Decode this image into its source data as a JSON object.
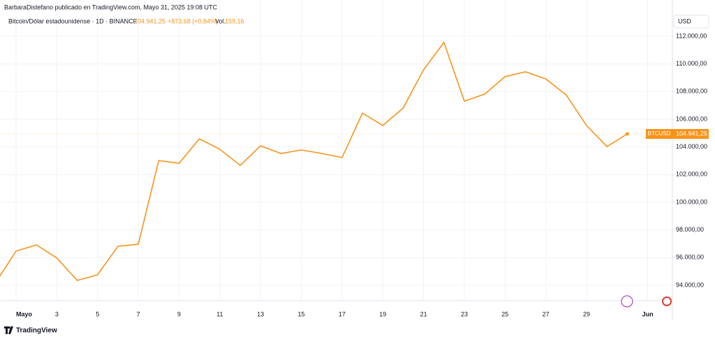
{
  "header": {
    "attribution": "BarbaraDistefano publicado en TradingView.com, Mayo 31, 2025 19:08 UTC",
    "symbol": "Bitcoin/Dólar estadounidense · 1D · BINANCE",
    "change": "+873,68 (+0,84%)",
    "volume_label": "Vol.",
    "volume": "159,16",
    "currency": "USD",
    "ticker": "BTCUSD",
    "brand": "TradingView"
  },
  "chart_data": {
    "type": "line",
    "categories": [
      null,
      "Mayo",
      null,
      "3",
      null,
      "5",
      null,
      "7",
      null,
      "9",
      null,
      "11",
      null,
      "13",
      null,
      "15",
      null,
      "17",
      null,
      "19",
      null,
      "21",
      null,
      "23",
      null,
      "25",
      null,
      "27",
      null,
      "29",
      null,
      null,
      "Jun"
    ],
    "series": [
      {
        "name": "BTCUSD",
        "color": "#f7931a",
        "values": [
          94200,
          96470,
          96920,
          95970,
          94350,
          94760,
          96820,
          96970,
          103020,
          102820,
          104590,
          103830,
          102670,
          104080,
          103530,
          103780,
          103530,
          103230,
          106450,
          105550,
          106810,
          109580,
          111550,
          107310,
          107820,
          109080,
          109430,
          108920,
          107760,
          105550,
          104030,
          104941.25,
          null
        ],
        "value_labels": [
          null,
          null,
          null,
          null,
          null,
          null,
          null,
          null,
          null,
          null,
          null,
          null,
          null,
          null,
          null,
          null,
          null,
          null,
          null,
          null,
          null,
          null,
          null,
          null,
          null,
          null,
          null,
          null,
          null,
          null,
          null,
          "104.941,25",
          null
        ]
      }
    ],
    "ylim": [
      92890,
      114220
    ],
    "yticks": [
      {
        "value": 94000,
        "label": "94.000,00"
      },
      {
        "value": 96000,
        "label": "96.000,00"
      },
      {
        "value": 98000,
        "label": "98.000,00"
      },
      {
        "value": 100000,
        "label": "100.000,00"
      },
      {
        "value": 102000,
        "label": "102.000,00"
      },
      {
        "value": 104000,
        "label": "104.000,00"
      },
      {
        "value": 106000,
        "label": "106.000,00"
      },
      {
        "value": 108000,
        "label": "108.000,00"
      },
      {
        "value": 110000,
        "label": "110.000,00"
      },
      {
        "value": 112000,
        "label": "112.000,00"
      }
    ],
    "grid": true
  }
}
